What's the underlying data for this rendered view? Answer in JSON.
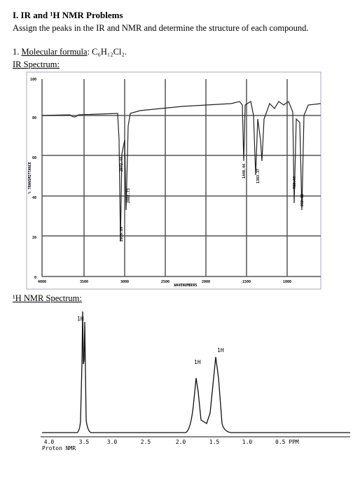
{
  "header": {
    "title": "I. IR and ¹H NMR Problems",
    "instructions": "Assign the peaks in the IR and NMR and determine the structure of each compound."
  },
  "problem": {
    "number": "1.",
    "formula_label": "Molecular formula",
    "formula": ": C₆H₁₂Cl₂."
  },
  "ir": {
    "title": "IR Spectrum:",
    "y_axis_label": "% TRANSMITTANCE",
    "x_axis_label": "WAVENUMBERS",
    "y_ticks": [
      "100",
      "80",
      "60",
      "40",
      "20",
      "0"
    ],
    "x_ticks": [
      "4000",
      "3500",
      "3000",
      "2500",
      "2000",
      "1500",
      "1000"
    ],
    "peak_labels": [
      "2972.44",
      "2882.73",
      "2939.89",
      "1448.44",
      "1383.37",
      "733.44",
      "652.32"
    ]
  },
  "nmr": {
    "title": "¹H NMR Spectrum:",
    "peak_labels": [
      "1H",
      "1H",
      "1H"
    ],
    "x_ticks": [
      "4.0",
      "3.5",
      "3.0",
      "2.5",
      "2.0",
      "1.5",
      "1.0",
      "0.5 PPM"
    ],
    "caption": "Proton NMR"
  }
}
